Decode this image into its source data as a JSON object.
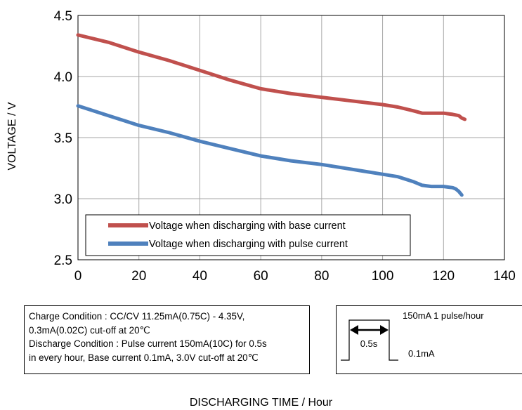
{
  "chart_data": {
    "type": "line",
    "xlabel": "DISCHARGING TIME / Hour",
    "ylabel": "VOLTAGE / V",
    "xlim": [
      0,
      140
    ],
    "ylim": [
      2.5,
      4.5
    ],
    "x_ticks": [
      "0",
      "20",
      "40",
      "60",
      "80",
      "100",
      "120",
      "140"
    ],
    "y_ticks": [
      "2.5",
      "3.0",
      "3.5",
      "4.0",
      "4.5"
    ],
    "grid": true,
    "legend_position": "bottom-left",
    "series": [
      {
        "name": "Voltage when discharging with base current",
        "color": "#c0504d",
        "x": [
          0,
          5,
          10,
          15,
          20,
          30,
          40,
          50,
          60,
          70,
          80,
          90,
          100,
          105,
          110,
          113,
          116,
          120,
          123,
          125,
          126,
          127
        ],
        "y": [
          4.34,
          4.31,
          4.28,
          4.24,
          4.2,
          4.13,
          4.05,
          3.97,
          3.9,
          3.86,
          3.83,
          3.8,
          3.77,
          3.75,
          3.72,
          3.7,
          3.7,
          3.7,
          3.69,
          3.68,
          3.66,
          3.65
        ]
      },
      {
        "name": "Voltage when discharging with pulse current",
        "color": "#4f81bd",
        "x": [
          0,
          5,
          10,
          15,
          20,
          30,
          40,
          50,
          60,
          70,
          80,
          90,
          100,
          105,
          110,
          113,
          116,
          120,
          123,
          124,
          125,
          126
        ],
        "y": [
          3.76,
          3.72,
          3.68,
          3.64,
          3.6,
          3.54,
          3.47,
          3.41,
          3.35,
          3.31,
          3.28,
          3.24,
          3.2,
          3.18,
          3.14,
          3.11,
          3.1,
          3.1,
          3.09,
          3.08,
          3.06,
          3.03
        ]
      }
    ]
  },
  "conditions": {
    "line1": "Charge Condition : CC/CV 11.25mA(0.75C) - 4.35V,",
    "line2": "0.3mA(0.02C) cut-off at 20℃",
    "line3": "Discharge Condition : Pulse current 150mA(10C) for 0.5s",
    "line4": "in every hour, Base  current 0.1mA, 3.0V cut-off at 20℃"
  },
  "pulse_diagram": {
    "peak_label": "150mA   1 pulse/hour",
    "duration_label": "0.5s",
    "base_label": "0.1mA"
  }
}
